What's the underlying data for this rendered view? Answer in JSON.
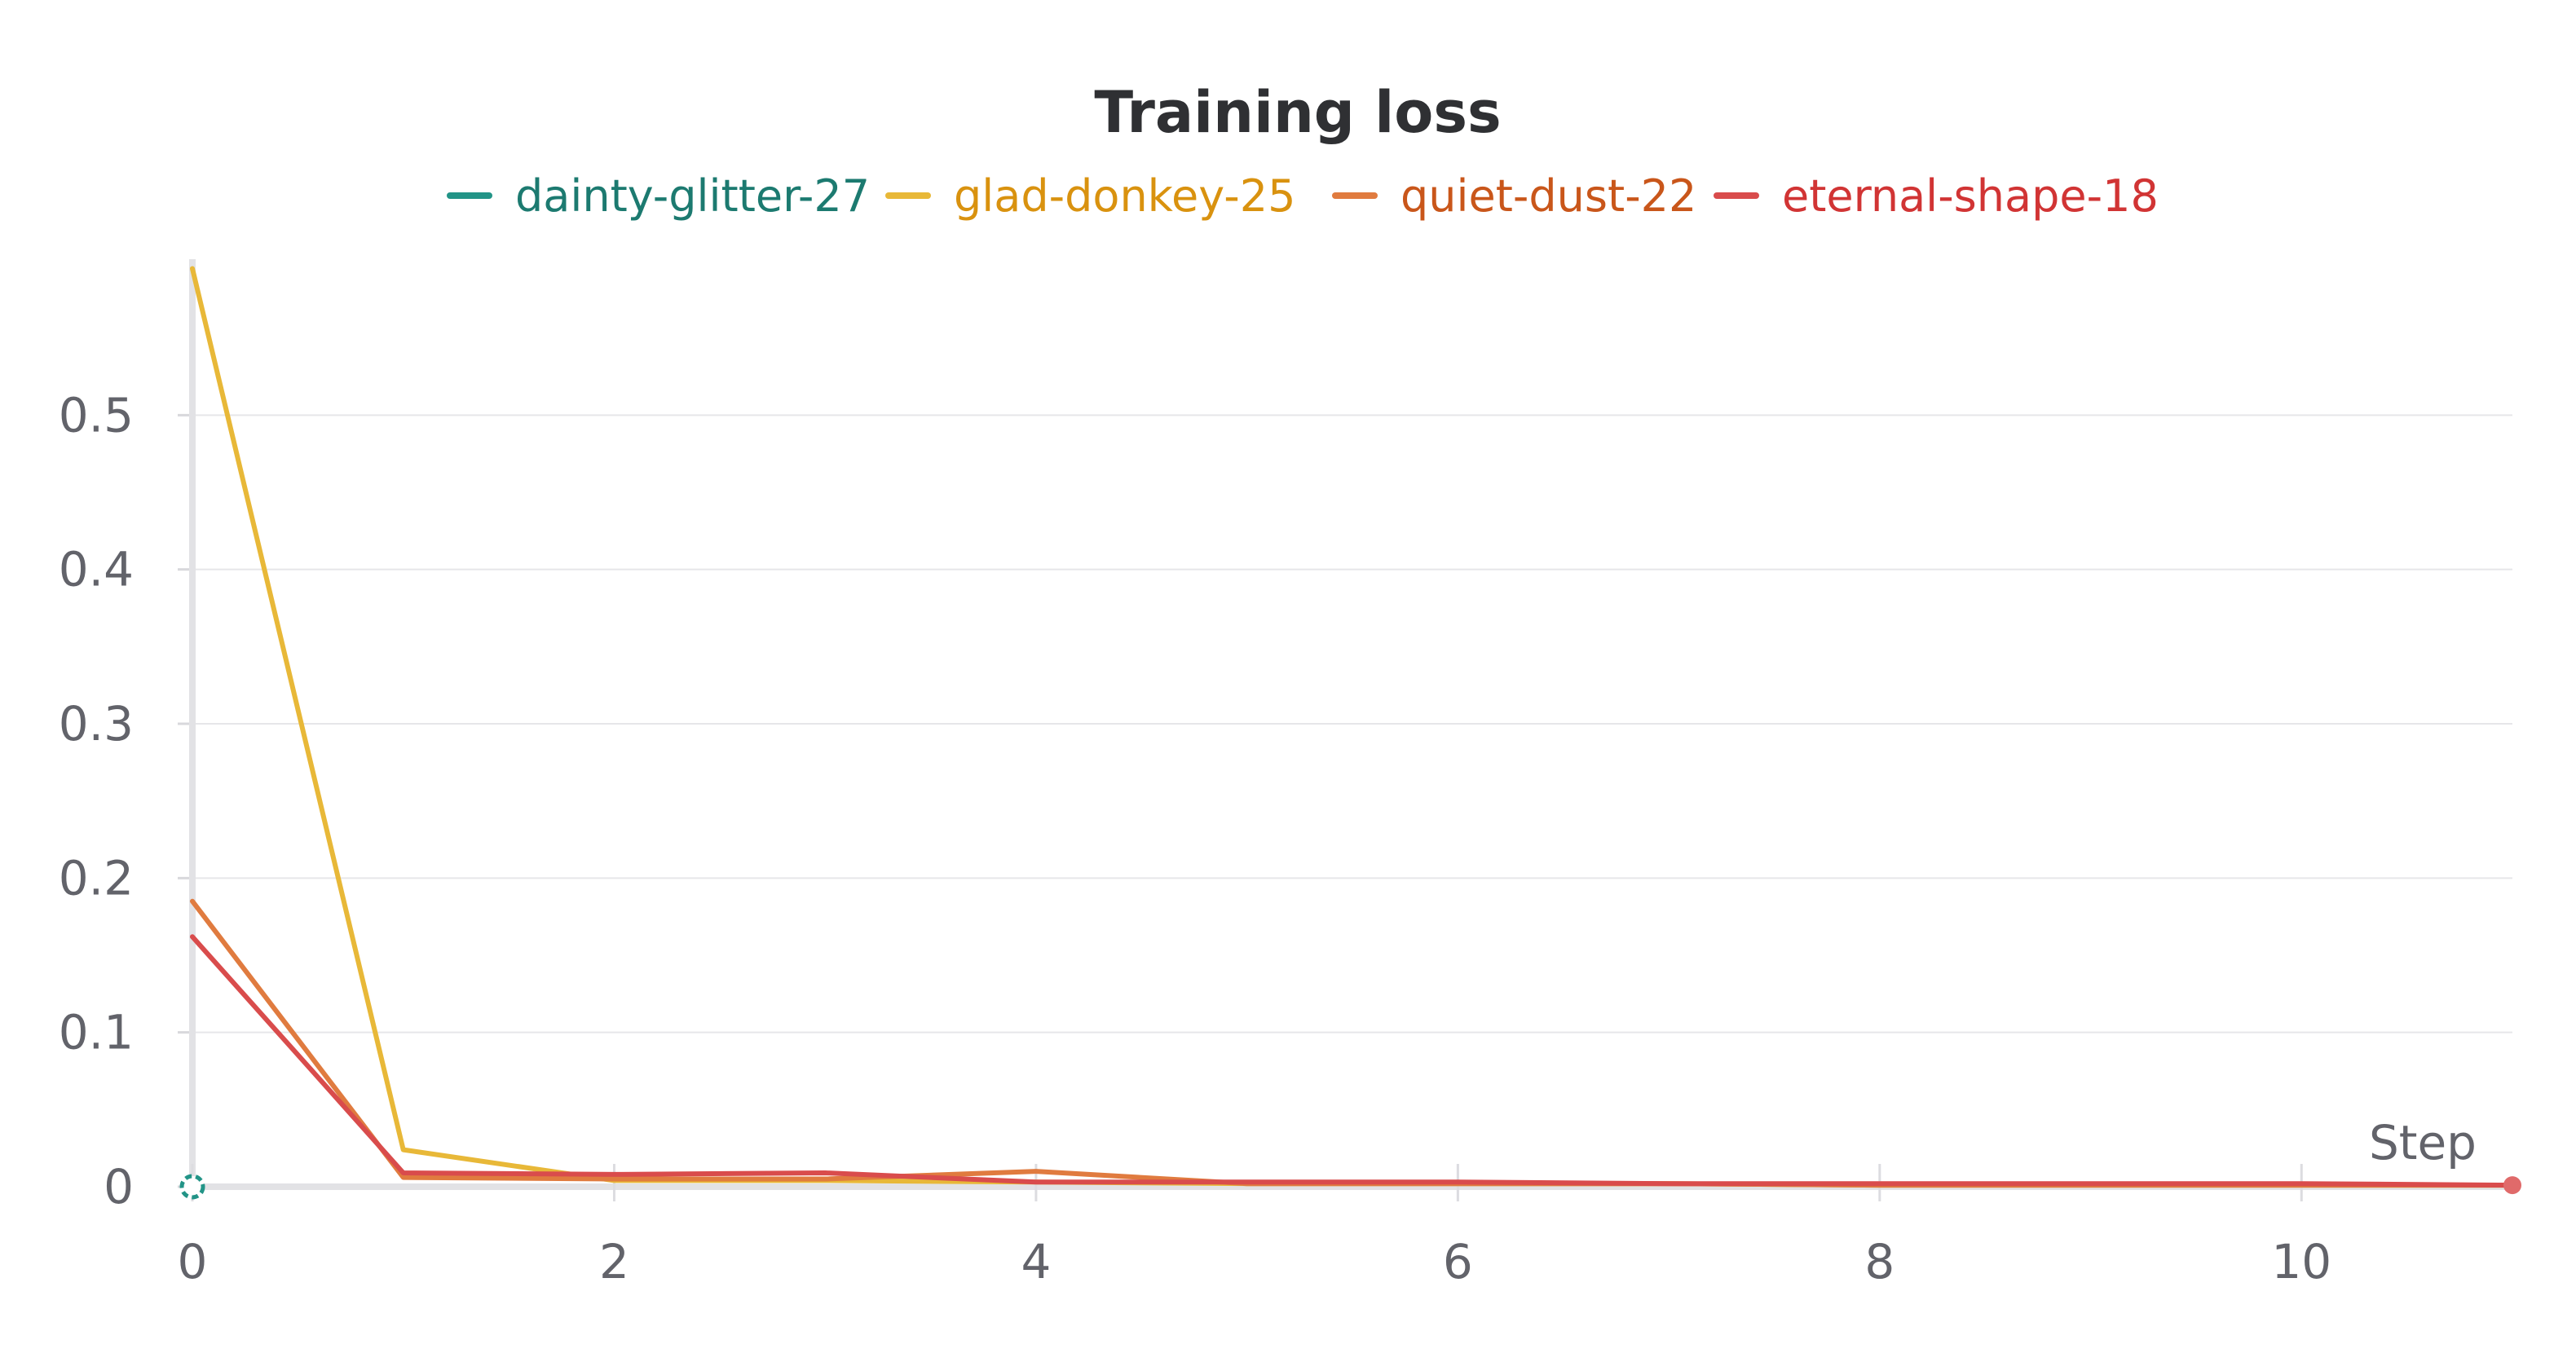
{
  "chart_data": {
    "type": "line",
    "title": "Training loss",
    "xlabel": "Step",
    "ylabel": "",
    "xlim": [
      0,
      11
    ],
    "ylim": [
      0,
      0.6
    ],
    "xticks": [
      0,
      2,
      4,
      6,
      8,
      10
    ],
    "yticks": [
      0,
      0.1,
      0.2,
      0.3,
      0.4,
      0.5
    ],
    "grid": true,
    "legend_position": "top",
    "series": [
      {
        "name": "dainty-glitter-27",
        "color": "#229487",
        "text_color": "#1c7a70",
        "x": [
          0
        ],
        "y": [
          0
        ]
      },
      {
        "name": "glad-donkey-25",
        "color": "#e8b838",
        "text_color": "#d9920f",
        "x": [
          0,
          1,
          2,
          3,
          4,
          5,
          6,
          7,
          8,
          9,
          10,
          11
        ],
        "y": [
          0.595,
          0.024,
          0.004,
          0.004,
          0.003,
          0.002,
          0.002,
          0.002,
          0.001,
          0.001,
          0.001,
          0.001
        ]
      },
      {
        "name": "quiet-dust-22",
        "color": "#e07b3f",
        "text_color": "#c9561a",
        "x": [
          0,
          1,
          2,
          3,
          4,
          5,
          6,
          7,
          8,
          9,
          10,
          11
        ],
        "y": [
          0.185,
          0.006,
          0.005,
          0.005,
          0.01,
          0.002,
          0.002,
          0.002,
          0.001,
          0.001,
          0.001,
          0.001
        ]
      },
      {
        "name": "eternal-shape-18",
        "color": "#d94c4c",
        "text_color": "#d13434",
        "x": [
          0,
          1,
          2,
          3,
          4,
          5,
          6,
          7,
          8,
          9,
          10,
          11
        ],
        "y": [
          0.162,
          0.009,
          0.008,
          0.009,
          0.003,
          0.003,
          0.003,
          0.002,
          0.002,
          0.002,
          0.002,
          0.001
        ]
      }
    ]
  }
}
